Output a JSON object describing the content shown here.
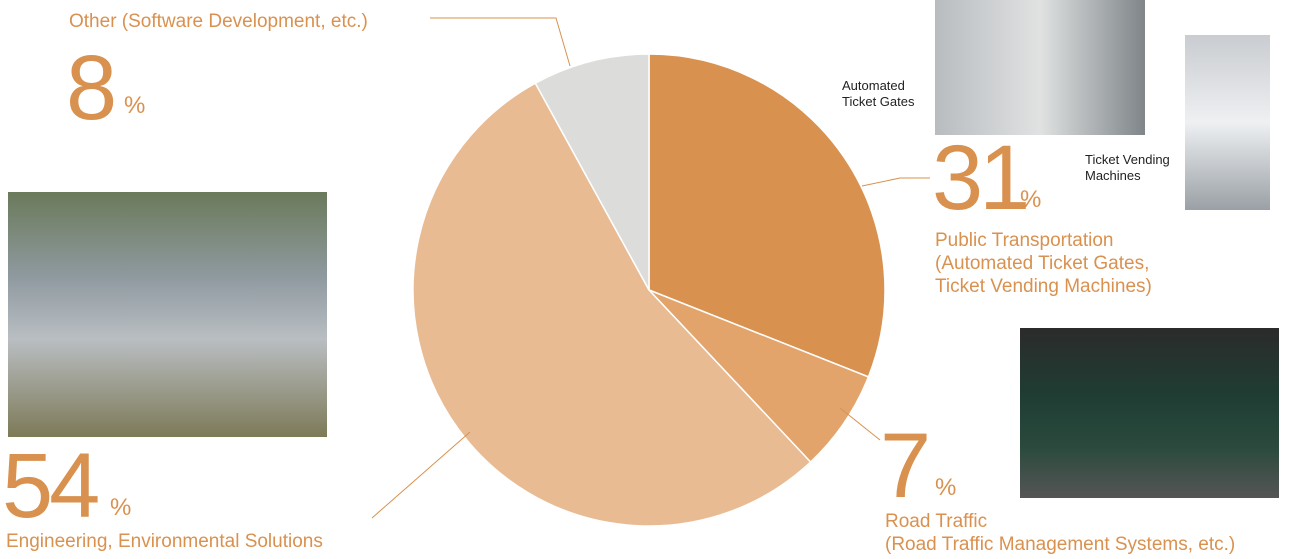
{
  "chart_data": {
    "type": "pie",
    "categories": [
      "Public Transportation\n(Automated Ticket Gates,\nTicket Vending Machines)",
      "Road Traffic\n(Road Traffic Management Systems, etc.)",
      "Engineering, Environmental Solutions",
      "Other (Software Development, etc.)"
    ],
    "values": [
      31,
      7,
      54,
      8
    ],
    "unit": "%",
    "colors": [
      "#d9914f",
      "#e3a46c",
      "#e8bb93",
      "#dcdcdb"
    ],
    "annotations": [
      "Automated\nTicket Gates",
      "Ticket Vending\nMachines"
    ]
  }
}
